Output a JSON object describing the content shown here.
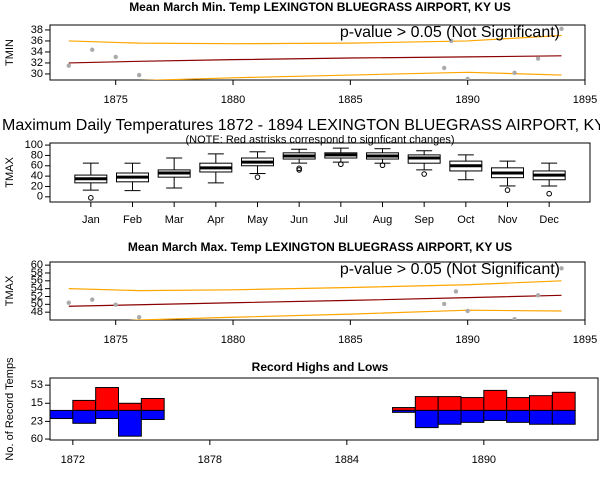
{
  "chart_data": [
    {
      "type": "scatter",
      "title": "Mean March Min. Temp LEXINGTON BLUEGRASS AIRPORT, KY US",
      "ylabel": "TMIN",
      "annotation": "p-value > 0.05 (Not Significant)",
      "x": [
        1873,
        1874,
        1875,
        1876,
        1889,
        1889.3,
        1890,
        1892,
        1893,
        1894
      ],
      "values": [
        31.5,
        34.4,
        33.1,
        29.8,
        31.1,
        36.0,
        29.1,
        30.2,
        32.8,
        38.2
      ],
      "point_color": "#aaaaaa",
      "lines": [
        {
          "color": "#8b0000",
          "x": [
            1873,
            1876,
            1880,
            1885,
            1890,
            1894
          ],
          "values": [
            32.0,
            32.3,
            32.6,
            32.9,
            33.1,
            33.3
          ]
        },
        {
          "color": "#ffa500",
          "x": [
            1873,
            1876,
            1880,
            1885,
            1890,
            1894
          ],
          "values": [
            36.0,
            35.6,
            35.5,
            35.6,
            36.0,
            37.0
          ]
        },
        {
          "color": "#ffa500",
          "x": [
            1873,
            1876,
            1880,
            1885,
            1890,
            1894
          ],
          "values": [
            28.0,
            28.8,
            29.3,
            29.8,
            30.3,
            29.8
          ]
        }
      ],
      "xlim": [
        1872.2,
        1895
      ],
      "ylim": [
        28.9,
        38.9
      ],
      "xticks": [
        1875,
        1880,
        1885,
        1890,
        1895
      ],
      "yticks": [
        30,
        32,
        34,
        36,
        38
      ]
    },
    {
      "type": "box",
      "title": "Maximum Daily Temperatures 1872 - 1894 LEXINGTON BLUEGRASS AIRPORT, KY US",
      "subtitle": "(NOTE: Red astrisks correspond to signficant changes)",
      "ylabel": "TMAX",
      "categories": [
        "Jan",
        "Feb",
        "Mar",
        "Apr",
        "May",
        "Jun",
        "Jul",
        "Aug",
        "Sep",
        "Oct",
        "Nov",
        "Dec"
      ],
      "min": [
        13,
        12,
        17,
        27,
        45,
        65,
        67,
        65,
        52,
        33,
        21,
        21
      ],
      "q1": [
        27,
        29,
        38,
        48,
        60,
        73,
        75,
        73,
        65,
        50,
        37,
        33
      ],
      "median": [
        35,
        38,
        46,
        56,
        67,
        79,
        81,
        79,
        75,
        60,
        46,
        42
      ],
      "q3": [
        42,
        46,
        52,
        65,
        75,
        85,
        85,
        85,
        81,
        69,
        56,
        50
      ],
      "max": [
        65,
        65,
        75,
        83,
        87,
        92,
        94,
        93,
        89,
        81,
        69,
        65
      ],
      "outliers": [
        [
          -2
        ],
        [],
        [],
        [],
        [
          38
        ],
        [
          55,
          52
        ],
        [
          63
        ],
        [
          61
        ],
        [
          44
        ],
        [],
        [
          13
        ],
        [
          6
        ]
      ],
      "ylim": [
        -10,
        104
      ],
      "yticks": [
        0,
        20,
        40,
        60,
        80,
        100
      ]
    },
    {
      "type": "scatter",
      "title": "Mean March Max. Temp LEXINGTON BLUEGRASS AIRPORT, KY US",
      "ylabel": "TMAX",
      "annotation": "p-value > 0.05 (Not Significant)",
      "x": [
        1873,
        1874,
        1875,
        1876,
        1889,
        1889.5,
        1890,
        1892,
        1893,
        1894
      ],
      "values": [
        50.4,
        51.2,
        49.9,
        46.7,
        50.1,
        53.3,
        48.3,
        46.2,
        52.3,
        59.2
      ],
      "point_color": "#aaaaaa",
      "lines": [
        {
          "color": "#8b0000",
          "x": [
            1873,
            1876,
            1880,
            1885,
            1890,
            1894
          ],
          "values": [
            49.5,
            49.9,
            50.4,
            51.0,
            51.7,
            52.3
          ]
        },
        {
          "color": "#ffa500",
          "x": [
            1873,
            1876,
            1880,
            1885,
            1890,
            1894
          ],
          "values": [
            54.0,
            53.5,
            53.7,
            54.3,
            55.0,
            56.0
          ]
        },
        {
          "color": "#ffa500",
          "x": [
            1873,
            1876,
            1880,
            1885,
            1890,
            1894
          ],
          "values": [
            45.0,
            46.0,
            46.7,
            47.5,
            48.5,
            48.3
          ]
        }
      ],
      "xlim": [
        1872.2,
        1895
      ],
      "ylim": [
        46.0,
        60.8
      ],
      "xticks": [
        1875,
        1880,
        1885,
        1890,
        1895
      ],
      "yticks": [
        48,
        50,
        52,
        54,
        56,
        58,
        60
      ]
    },
    {
      "type": "bar",
      "title": "Record Highs and Lows",
      "ylabel": "No. of Record Temps",
      "x": [
        1871,
        1872,
        1873,
        1874,
        1875,
        1886,
        1887,
        1888,
        1889,
        1890,
        1891,
        1892,
        1893
      ],
      "highs": {
        "color": "#ff0000",
        "values": [
          0,
          21,
          48,
          15,
          25,
          6,
          29,
          29,
          27,
          42,
          27,
          31,
          38
        ]
      },
      "lows": {
        "color": "#0000ff",
        "values": [
          17,
          27,
          17,
          54,
          19,
          4,
          36,
          29,
          25,
          21,
          25,
          29,
          29
        ]
      },
      "xlim": [
        1871,
        1895
      ],
      "ylim": [
        -62,
        68
      ],
      "xticks": [
        1872,
        1878,
        1884,
        1890
      ],
      "yticks": [
        53,
        15,
        {
          "value": -23,
          "label": "23"
        },
        {
          "value": -60,
          "label": "60"
        }
      ]
    }
  ]
}
